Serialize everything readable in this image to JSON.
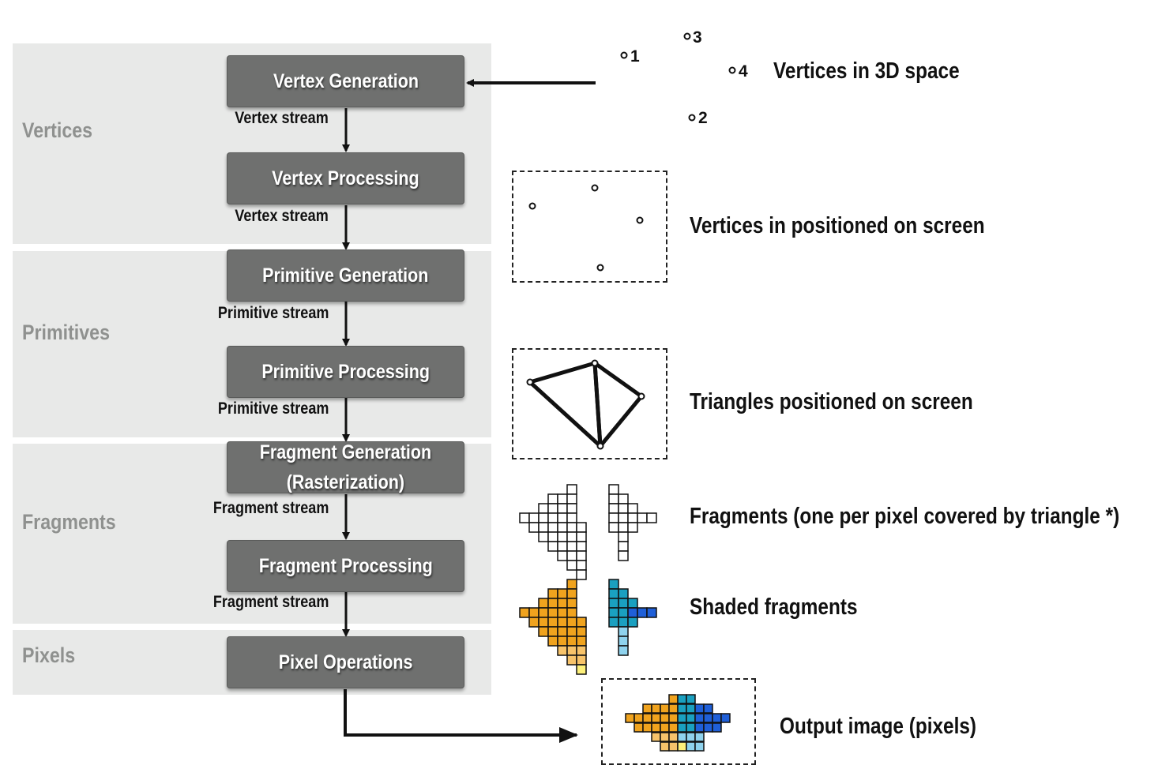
{
  "bands": {
    "vertices": "Vertices",
    "primitives": "Primitives",
    "fragments": "Fragments",
    "pixels": "Pixels"
  },
  "stages": {
    "vertex_generation": "Vertex Generation",
    "vertex_processing": "Vertex Processing",
    "primitive_generation": "Primitive Generation",
    "primitive_processing": "Primitive Processing",
    "fragment_generation": "Fragment Generation\n(Rasterization)",
    "fragment_processing": "Fragment Processing",
    "pixel_operations": "Pixel Operations"
  },
  "streams": {
    "vertex_1": "Vertex stream",
    "vertex_2": "Vertex stream",
    "primitive_1": "Primitive stream",
    "primitive_2": "Primitive stream",
    "fragment_1": "Fragment stream",
    "fragment_2": "Fragment stream"
  },
  "vertex_labels": [
    "1",
    "2",
    "3",
    "4"
  ],
  "descriptions": {
    "vertices_3d": "Vertices in 3D space",
    "vertices_screen": "Vertices in positioned on screen",
    "triangles_screen": "Triangles positioned on screen",
    "fragments": "Fragments (one per pixel covered by triangle *)",
    "shaded": "Shaded fragments",
    "output": "Output image (pixels)"
  },
  "colors": {
    "band": "#e8e9e8",
    "stage": "#6f706f",
    "orange": "#f0a31e",
    "light_orange": "#f7c36a",
    "yellow": "#fdf07a",
    "teal": "#1aa0c0",
    "blue": "#1f5fd8",
    "light_blue": "#8fd3ee"
  }
}
